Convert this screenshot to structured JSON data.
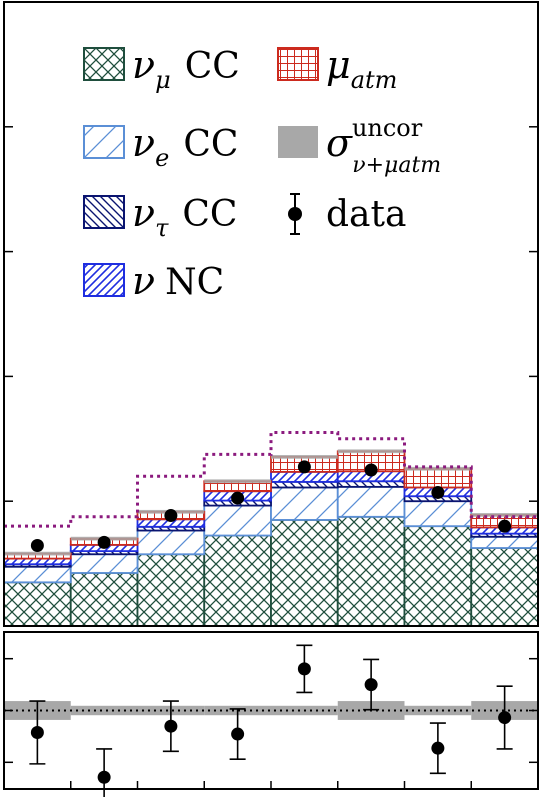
{
  "colors": {
    "nu_mu_cc": "#1f4e3d",
    "nu_e_cc": "#5b8fd6",
    "nu_tau_cc": "#0a1470",
    "nu_nc": "#1f2ee0",
    "mu_atm": "#cc2a1e",
    "uncor_band": "#a8a8a8",
    "dotted": "#8b1a7e",
    "data": "#000000"
  },
  "legend": [
    {
      "id": "nu_mu_cc",
      "symbol": "ν",
      "sub": "μ",
      "label": "CC",
      "pattern": "crosshatch"
    },
    {
      "id": "mu_atm",
      "symbol": "μ",
      "sub": "atm",
      "label": "",
      "pattern": "grid"
    },
    {
      "id": "nu_e_cc",
      "symbol": "ν",
      "sub": "e",
      "label": "CC",
      "pattern": "diag"
    },
    {
      "id": "uncor",
      "symbol": "σ",
      "sup": "uncor",
      "sub": "ν+μatm",
      "label": "",
      "pattern": "solid"
    },
    {
      "id": "nu_tau_cc",
      "symbol": "ν",
      "sub": "τ",
      "label": "CC",
      "pattern": "backdiag"
    },
    {
      "id": "data",
      "symbol": "",
      "sub": "",
      "label": "data",
      "pattern": "point"
    },
    {
      "id": "nu_nc",
      "symbol": "ν",
      "sub": "",
      "label": "NC",
      "pattern": "densediag"
    }
  ],
  "chart_data": [
    {
      "type": "bar",
      "stacked": true,
      "bins": [
        1,
        2,
        3,
        4,
        5,
        6,
        7,
        8
      ],
      "ylim": [
        0,
        1
      ],
      "series": [
        {
          "id": "nu_mu_cc",
          "name": "ν_μ CC",
          "values": [
            0.07,
            0.085,
            0.115,
            0.145,
            0.17,
            0.175,
            0.16,
            0.125
          ]
        },
        {
          "id": "nu_e_cc",
          "name": "ν_e CC",
          "values": [
            0.025,
            0.03,
            0.038,
            0.048,
            0.052,
            0.048,
            0.04,
            0.018
          ]
        },
        {
          "id": "nu_tau_cc",
          "name": "ν_τ CC",
          "values": [
            0.004,
            0.005,
            0.006,
            0.008,
            0.009,
            0.009,
            0.008,
            0.005
          ]
        },
        {
          "id": "nu_nc",
          "name": "ν NC",
          "values": [
            0.009,
            0.01,
            0.012,
            0.015,
            0.016,
            0.016,
            0.014,
            0.01
          ]
        },
        {
          "id": "mu_atm",
          "name": "μ_atm",
          "values": [
            0.008,
            0.01,
            0.012,
            0.016,
            0.024,
            0.032,
            0.03,
            0.02
          ]
        }
      ],
      "uncor_band": [
        0.003,
        0.003,
        0.003,
        0.003,
        0.003,
        0.003,
        0.003,
        0.003
      ],
      "dotted_line": [
        0.16,
        0.175,
        0.24,
        0.275,
        0.31,
        0.3,
        0.255,
        0.175
      ],
      "data_points": [
        0.129,
        0.134,
        0.177,
        0.205,
        0.255,
        0.25,
        0.214,
        0.16
      ]
    },
    {
      "type": "scatter",
      "bins": [
        1,
        2,
        3,
        4,
        5,
        6,
        7,
        8
      ],
      "ylim": [
        -1,
        1
      ],
      "reference_line": 0,
      "uncor_band": [
        0.12,
        0.06,
        0.06,
        0.06,
        0.06,
        0.12,
        0.06,
        0.12
      ],
      "values": [
        -0.28,
        -0.85,
        -0.2,
        -0.3,
        0.53,
        0.33,
        -0.48,
        -0.09
      ],
      "errors": [
        0.4,
        0.36,
        0.32,
        0.32,
        0.3,
        0.32,
        0.32,
        0.4
      ]
    }
  ]
}
